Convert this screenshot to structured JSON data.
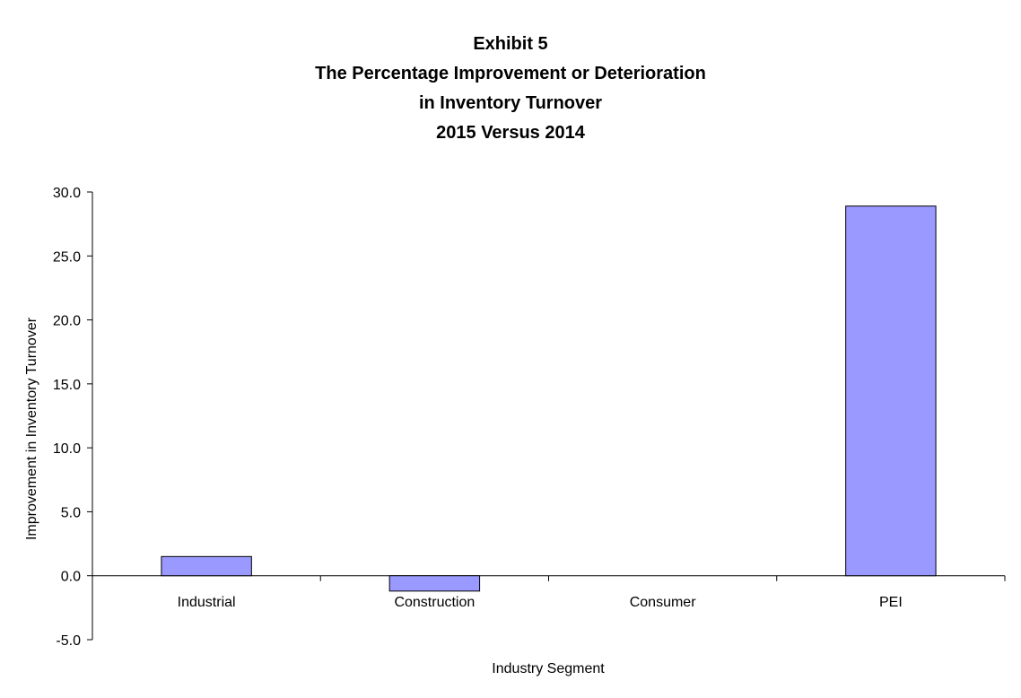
{
  "chart_data": {
    "type": "bar",
    "title_lines": [
      "Exhibit 5",
      "The Percentage Improvement or Deterioration",
      "in Inventory Turnover",
      "2015 Versus 2014"
    ],
    "categories": [
      "Industrial",
      "Construction",
      "Consumer",
      "PEI"
    ],
    "values": [
      1.5,
      -1.2,
      0.0,
      28.9
    ],
    "xlabel": "Industry Segment",
    "ylabel": "Improvement in Inventory Turnover",
    "ylim": [
      -5.0,
      30.0
    ],
    "yticks": [
      "30.0",
      "25.0",
      "20.0",
      "15.0",
      "10.0",
      "5.0",
      "0.0",
      "-5.0"
    ],
    "grid": false,
    "legend": "none",
    "bar_color": "#9999ff"
  }
}
